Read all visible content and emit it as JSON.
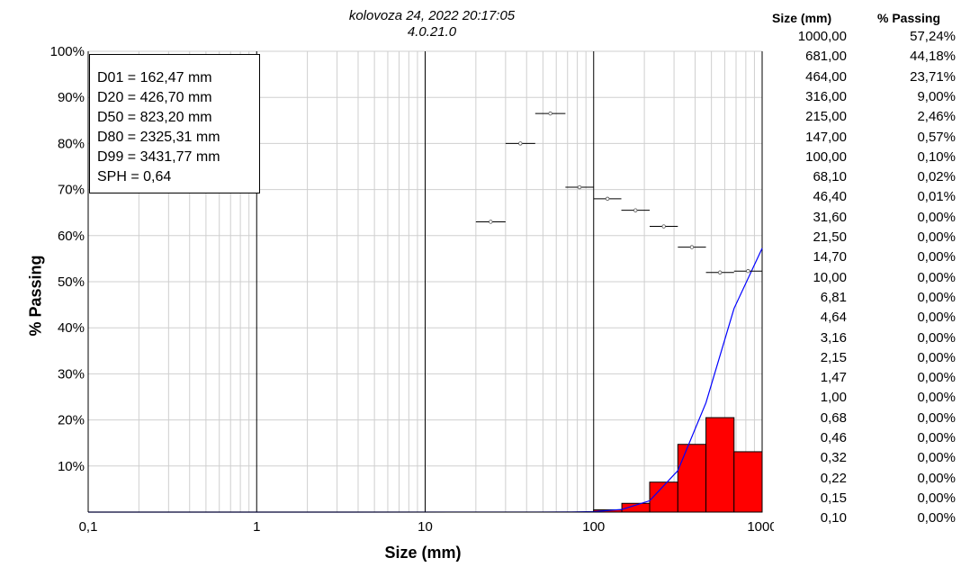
{
  "header": {
    "date": "kolovoza 24, 2022 20:17:05",
    "version": "4.0.21.0"
  },
  "chart_data": {
    "type": "bar",
    "x_scale": "log",
    "xlim": [
      0.1,
      1000
    ],
    "ylim": [
      0,
      100
    ],
    "xlabel": "Size (mm)",
    "ylabel": "% Passing",
    "x_ticks": [
      "0,1",
      "1",
      "10",
      "100",
      "1000"
    ],
    "y_ticks": [
      "10%",
      "20%",
      "30%",
      "40%",
      "50%",
      "60%",
      "70%",
      "80%",
      "90%",
      "100%"
    ],
    "histogram": {
      "color": "#ff0000",
      "bins": [
        {
          "from": 100,
          "to": 147,
          "value": 0.5
        },
        {
          "from": 147,
          "to": 215,
          "value": 1.9
        },
        {
          "from": 215,
          "to": 316,
          "value": 6.5
        },
        {
          "from": 316,
          "to": 464,
          "value": 14.7
        },
        {
          "from": 464,
          "to": 681,
          "value": 20.5
        },
        {
          "from": 681,
          "to": 1000,
          "value": 13.1
        }
      ]
    },
    "cumulative_line": {
      "color": "#0000ff",
      "points": [
        [
          0.1,
          0
        ],
        [
          46.4,
          0.01
        ],
        [
          68.1,
          0.02
        ],
        [
          100,
          0.1
        ],
        [
          147,
          0.57
        ],
        [
          215,
          2.46
        ],
        [
          316,
          9.0
        ],
        [
          464,
          23.71
        ],
        [
          681,
          44.18
        ],
        [
          1000,
          57.24
        ]
      ]
    },
    "range_markers": [
      {
        "from": 20,
        "to": 30,
        "value": 63
      },
      {
        "from": 30,
        "to": 45,
        "value": 80
      },
      {
        "from": 45,
        "to": 68,
        "value": 86.5
      },
      {
        "from": 68,
        "to": 100,
        "value": 70.5
      },
      {
        "from": 100,
        "to": 146,
        "value": 68
      },
      {
        "from": 146,
        "to": 215,
        "value": 65.5
      },
      {
        "from": 215,
        "to": 316,
        "value": 62
      },
      {
        "from": 316,
        "to": 464,
        "value": 57.5
      },
      {
        "from": 464,
        "to": 681,
        "value": 52
      },
      {
        "from": 681,
        "to": 1000,
        "value": 52.3
      }
    ]
  },
  "stats": [
    "D01 = 162,47 mm",
    "D20 = 426,70 mm",
    "D50 = 823,20 mm",
    "D80 = 2325,31 mm",
    "D99 = 3431,77 mm",
    "SPH = 0,64"
  ],
  "table": {
    "col_size": "Size (mm)",
    "col_passing": "% Passing",
    "rows": [
      [
        "1000,00",
        "57,24%"
      ],
      [
        "681,00",
        "44,18%"
      ],
      [
        "464,00",
        "23,71%"
      ],
      [
        "316,00",
        "9,00%"
      ],
      [
        "215,00",
        "2,46%"
      ],
      [
        "147,00",
        "0,57%"
      ],
      [
        "100,00",
        "0,10%"
      ],
      [
        "68,10",
        "0,02%"
      ],
      [
        "46,40",
        "0,01%"
      ],
      [
        "31,60",
        "0,00%"
      ],
      [
        "21,50",
        "0,00%"
      ],
      [
        "14,70",
        "0,00%"
      ],
      [
        "10,00",
        "0,00%"
      ],
      [
        "6,81",
        "0,00%"
      ],
      [
        "4,64",
        "0,00%"
      ],
      [
        "3,16",
        "0,00%"
      ],
      [
        "2,15",
        "0,00%"
      ],
      [
        "1,47",
        "0,00%"
      ],
      [
        "1,00",
        "0,00%"
      ],
      [
        "0,68",
        "0,00%"
      ],
      [
        "0,46",
        "0,00%"
      ],
      [
        "0,32",
        "0,00%"
      ],
      [
        "0,22",
        "0,00%"
      ],
      [
        "0,15",
        "0,00%"
      ],
      [
        "0,10",
        "0,00%"
      ]
    ]
  }
}
